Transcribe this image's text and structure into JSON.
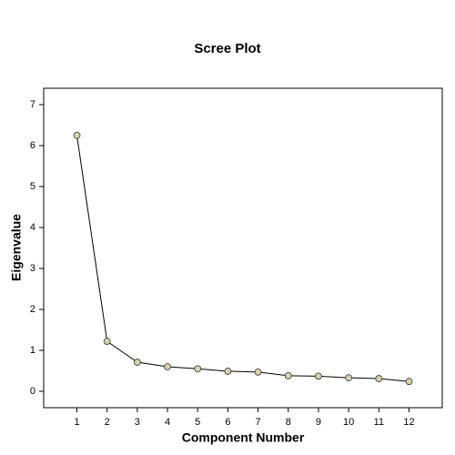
{
  "chart_data": {
    "type": "line",
    "title": "Scree Plot",
    "x_label": "Component Number",
    "y_label": "Eigenvalue",
    "x": [
      1,
      2,
      3,
      4,
      5,
      6,
      7,
      8,
      9,
      10,
      11,
      12
    ],
    "values": [
      6.25,
      1.22,
      0.71,
      0.6,
      0.55,
      0.49,
      0.47,
      0.38,
      0.37,
      0.33,
      0.31,
      0.24
    ],
    "color": "#000000",
    "marker_color": "#d6d2aa",
    "xlim": [
      -0.1,
      13.1
    ],
    "ylim": [
      -0.4,
      7.4
    ],
    "xticks": [
      1,
      2,
      3,
      4,
      5,
      6,
      7,
      8,
      9,
      10,
      11,
      12
    ],
    "yticks": [
      0,
      1,
      2,
      3,
      4,
      5,
      6,
      7
    ]
  }
}
